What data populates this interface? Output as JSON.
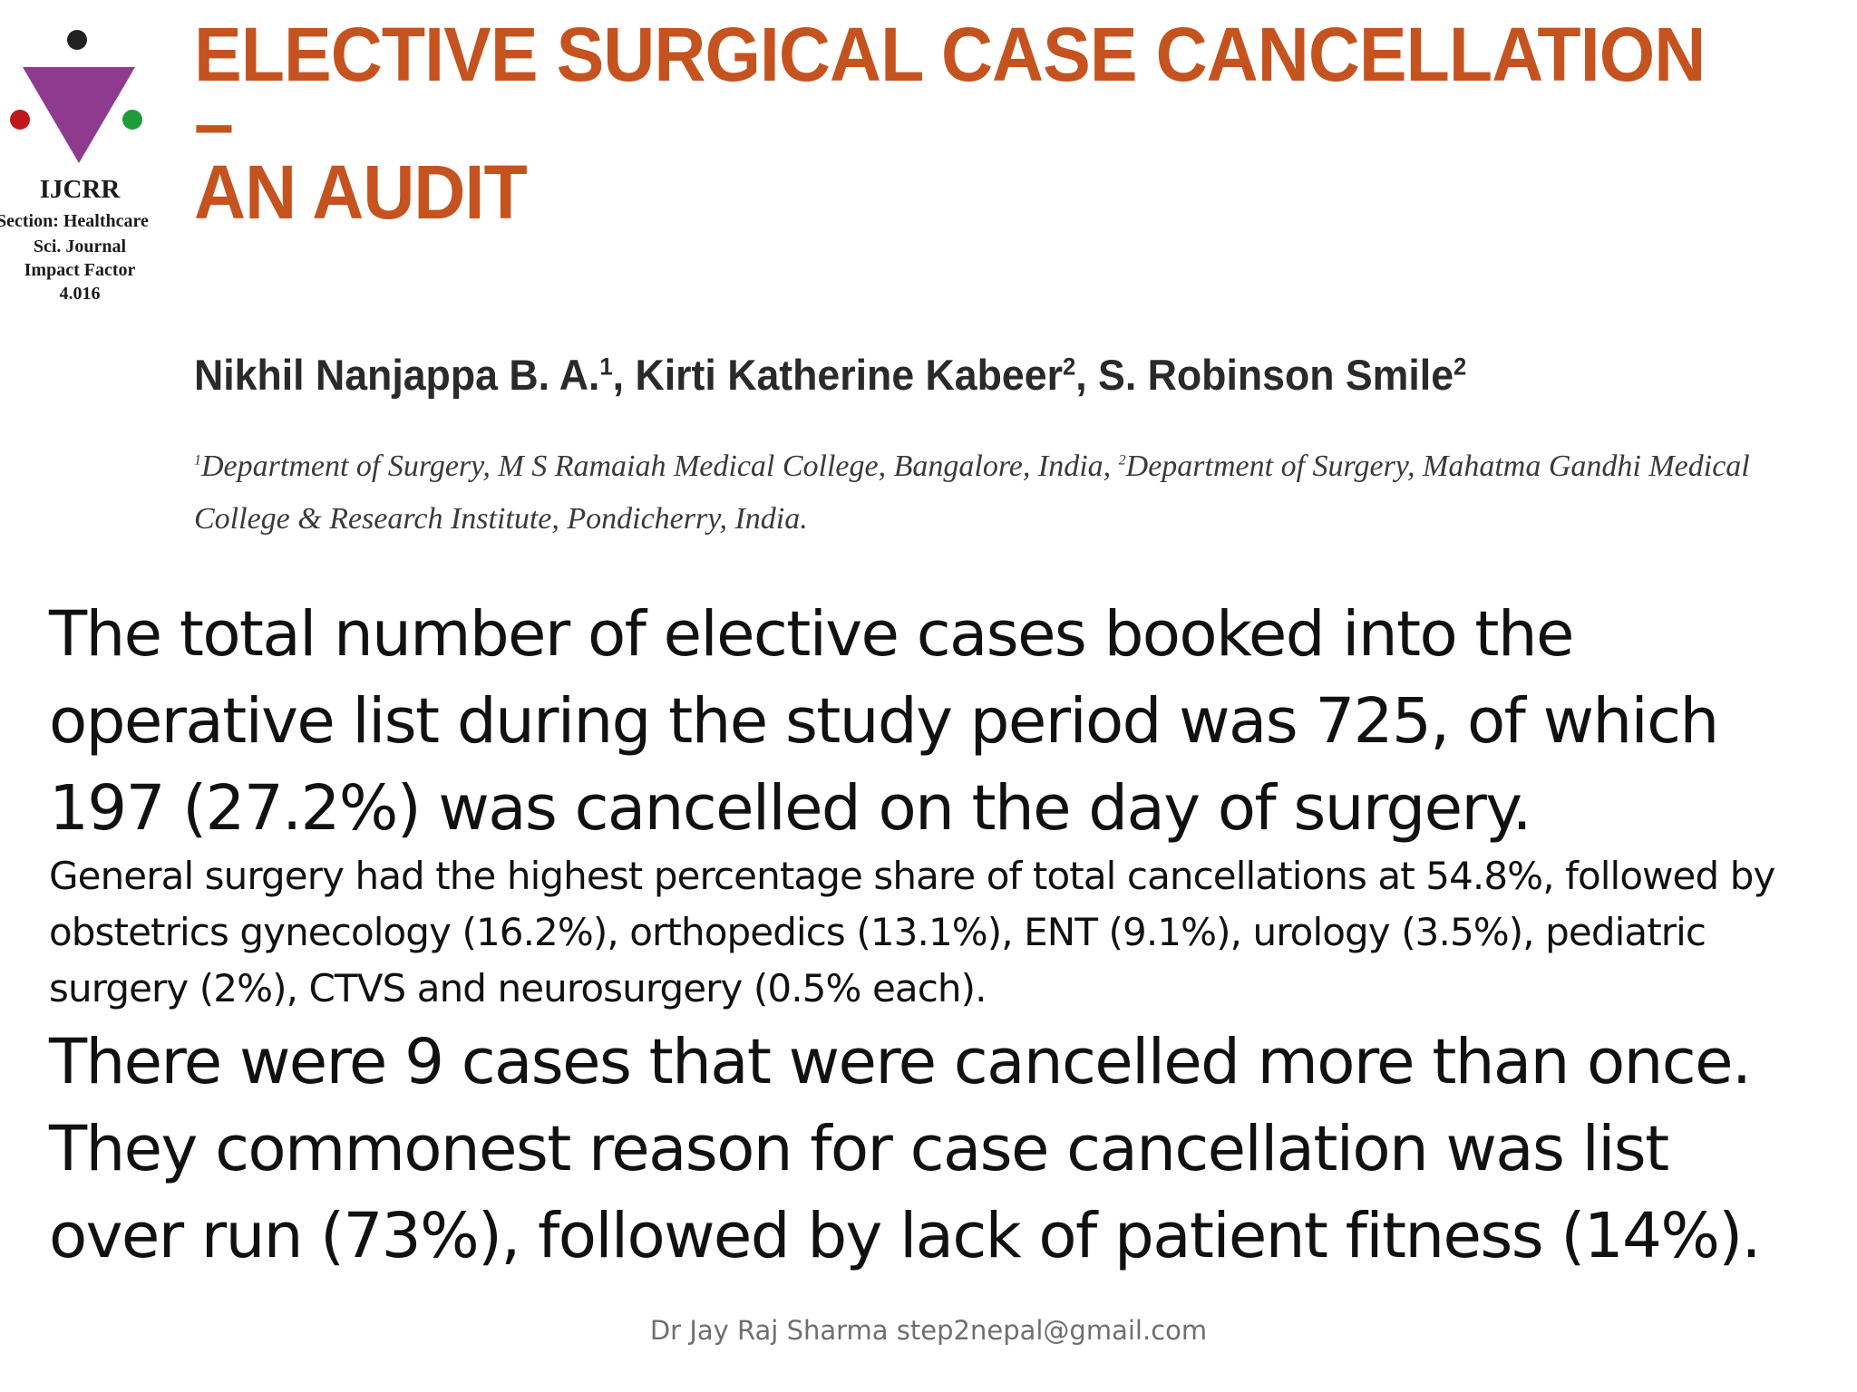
{
  "logo": {
    "name": "IJCRR",
    "section": "Section: Healthcare",
    "journal_line1": "Sci. Journal",
    "journal_line2": "Impact Factor",
    "impact_factor": "4.016",
    "colors": {
      "triangle": "#8e3a8e",
      "dot_top": "#222222",
      "dot_left": "#c0171c",
      "dot_right": "#1f9b3a"
    }
  },
  "paper": {
    "title_line1": "ELECTIVE SURGICAL CASE CANCELLATION –",
    "title_line2": "AN AUDIT",
    "title_color": "#c5531f",
    "authors": [
      {
        "name": "Nikhil Nanjappa B. A.",
        "affiliation": "1"
      },
      {
        "name": "Kirti Katherine Kabeer",
        "affiliation": "2"
      },
      {
        "name": "S. Robinson Smile",
        "affiliation": "2"
      }
    ],
    "affiliation1": {
      "marker": "1",
      "text": "Department of Surgery, M S Ramaiah Medical College, Bangalore, India, "
    },
    "affiliation2": {
      "marker": "2",
      "text": "Department of Surgery, Mahatma Gandhi Medical College & Research Institute, Pondicherry, India."
    }
  },
  "content": {
    "paragraph1": "The total number of elective cases booked into the operative list during the study period was 725, of which 197 (27.2%) was cancelled on the day of surgery.",
    "paragraph2": "General surgery had the highest percentage share of total cancellations at 54.8%, followed by obstetrics gynecology (16.2%), orthopedics (13.1%), ENT (9.1%), urology (3.5%), pediatric surgery (2%), CTVS and neurosurgery (0.5% each).",
    "paragraph3": "There were 9 cases that were cancelled more than once. They commonest reason for case cancellation was list over run (73%), followed by lack of patient fitness (14%)."
  },
  "footer": "Dr Jay Raj Sharma step2nepal@gmail.com"
}
